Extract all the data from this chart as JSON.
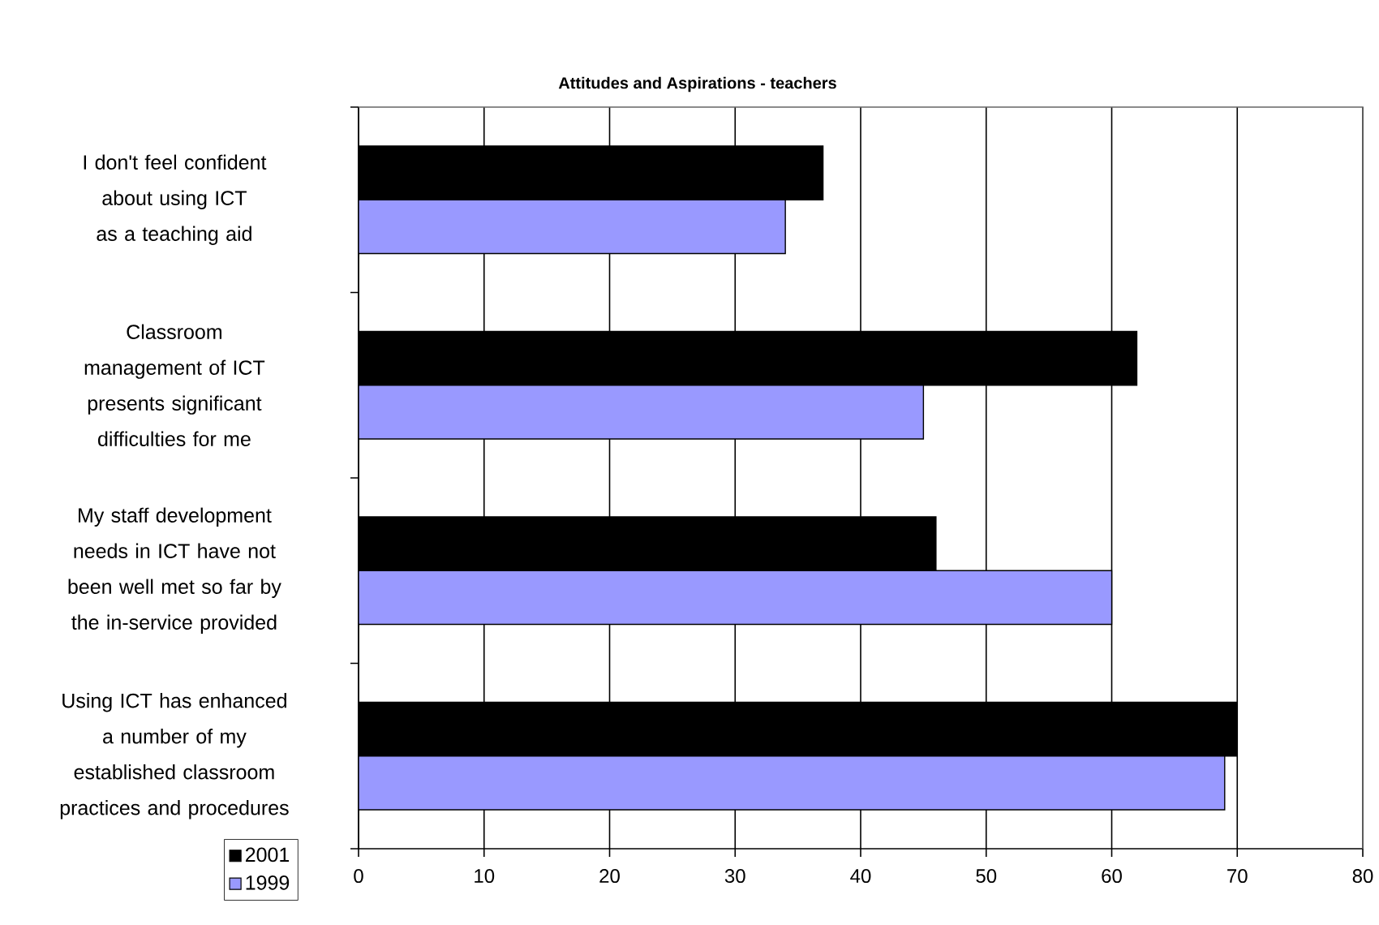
{
  "chart_data": {
    "type": "bar",
    "orientation": "horizontal",
    "title": "Attitudes and Aspirations - teachers",
    "categories": [
      "I don't feel confident about using ICT as a teaching aid",
      "Classroom management of ICT presents significant difficulties for me",
      "My staff development needs in ICT have not been well met so far by the in-service provided",
      "Using ICT has enhanced a number of my established classroom practices and procedures"
    ],
    "series": [
      {
        "name": "2001",
        "color": "#000000",
        "values": [
          37,
          62,
          46,
          70
        ]
      },
      {
        "name": "1999",
        "color": "#9999ff",
        "values": [
          34,
          45,
          60,
          69
        ]
      }
    ],
    "xlim": [
      0,
      80
    ],
    "xticks": [
      0,
      10,
      20,
      30,
      40,
      50,
      60,
      70,
      80
    ],
    "grid": "x",
    "legend": "bottom left"
  }
}
